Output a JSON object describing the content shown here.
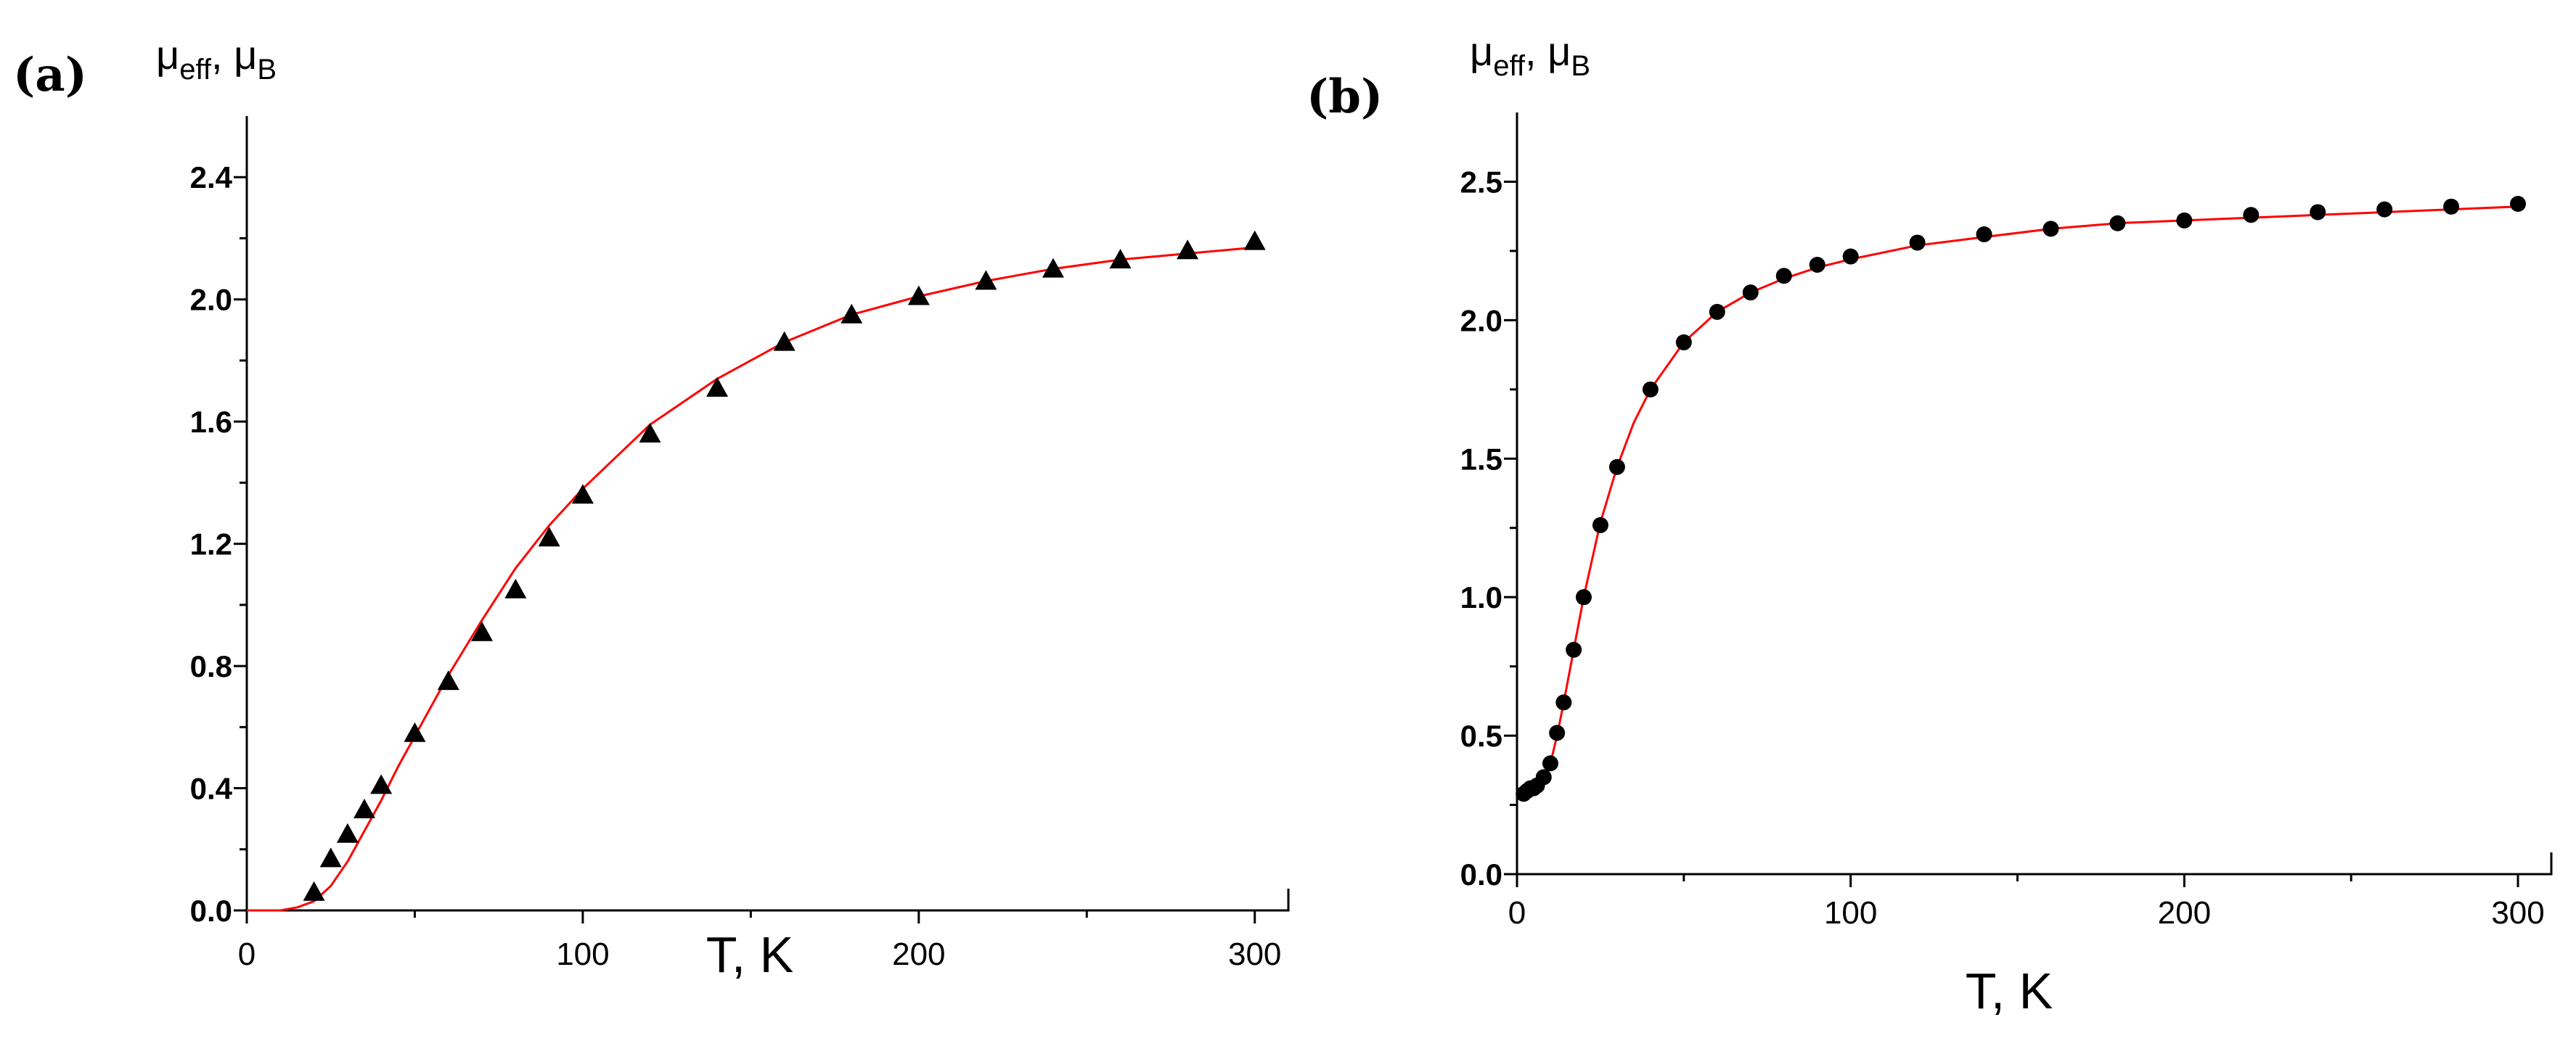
{
  "chart_data": [
    {
      "type": "scatter",
      "panel_label": "(a)",
      "ylabel": "μ",
      "ylabel_sub": "eff",
      "ylabel_sep": ", μ",
      "ylabel_sub2": "B",
      "xlabel": "T, K",
      "xlim": [
        0,
        310
      ],
      "ylim": [
        0,
        2.6
      ],
      "x_ticks": [
        0,
        100,
        200,
        300
      ],
      "x_minor_ticks": [
        50,
        150,
        250
      ],
      "y_ticks": [
        0.0,
        0.4,
        0.8,
        1.2,
        1.6,
        2.0,
        2.4
      ],
      "y_tick_labels": [
        "0.0",
        "0.4",
        "0.8",
        "1.2",
        "1.6",
        "2.0",
        "2.4"
      ],
      "y_minor_ticks": [
        0.2,
        0.6,
        1.0,
        1.4,
        1.8,
        2.2
      ],
      "marker": "triangle",
      "marker_color": "#000000",
      "points": {
        "x": [
          20,
          25,
          30,
          35,
          40,
          50,
          60,
          70,
          80,
          90,
          100,
          120,
          140,
          160,
          180,
          200,
          220,
          240,
          260,
          280,
          300
        ],
        "y": [
          0.06,
          0.17,
          0.25,
          0.33,
          0.41,
          0.58,
          0.75,
          0.91,
          1.05,
          1.22,
          1.36,
          1.56,
          1.71,
          1.86,
          1.95,
          2.01,
          2.06,
          2.1,
          2.13,
          2.16,
          2.19
        ]
      },
      "fit": {
        "color": "#ff0000",
        "x": [
          0,
          10,
          15,
          20,
          25,
          30,
          35,
          40,
          45,
          50,
          60,
          70,
          80,
          90,
          100,
          120,
          140,
          160,
          180,
          200,
          220,
          240,
          260,
          280,
          300
        ],
        "y": [
          0.0,
          0.0,
          0.01,
          0.03,
          0.08,
          0.16,
          0.26,
          0.36,
          0.47,
          0.57,
          0.77,
          0.95,
          1.12,
          1.26,
          1.38,
          1.59,
          1.74,
          1.86,
          1.95,
          2.01,
          2.06,
          2.1,
          2.13,
          2.15,
          2.17
        ]
      }
    },
    {
      "type": "scatter",
      "panel_label": "(b)",
      "ylabel": "μ",
      "ylabel_sub": "eff",
      "ylabel_sep": ", μ",
      "ylabel_sub2": "B",
      "xlabel": "T, K",
      "xlim": [
        0,
        310
      ],
      "ylim": [
        0,
        2.75
      ],
      "x_ticks": [
        0,
        100,
        200,
        300
      ],
      "x_minor_ticks": [
        50,
        150,
        250
      ],
      "y_ticks": [
        0.0,
        0.5,
        1.0,
        1.5,
        2.0,
        2.5
      ],
      "y_tick_labels": [
        "0.0",
        "0.5",
        "1.0",
        "1.5",
        "2.0",
        "2.5"
      ],
      "y_minor_ticks": [
        0.25,
        0.75,
        1.25,
        1.75,
        2.25
      ],
      "marker": "circle",
      "marker_color": "#000000",
      "points": {
        "x": [
          2,
          3,
          4,
          5,
          6,
          8,
          10,
          12,
          14,
          17,
          20,
          25,
          30,
          40,
          50,
          60,
          70,
          80,
          90,
          100,
          120,
          140,
          160,
          180,
          200,
          220,
          240,
          260,
          280,
          300
        ],
        "y": [
          0.29,
          0.3,
          0.31,
          0.31,
          0.32,
          0.35,
          0.4,
          0.51,
          0.62,
          0.81,
          1.0,
          1.26,
          1.47,
          1.75,
          1.92,
          2.03,
          2.1,
          2.16,
          2.2,
          2.23,
          2.28,
          2.31,
          2.33,
          2.35,
          2.36,
          2.38,
          2.39,
          2.4,
          2.41,
          2.42
        ]
      },
      "fit": {
        "color": "#ff0000",
        "x": [
          2,
          4,
          6,
          8,
          10,
          12,
          14,
          17,
          20,
          25,
          30,
          35,
          40,
          50,
          60,
          70,
          80,
          90,
          100,
          120,
          140,
          160,
          180,
          200,
          220,
          240,
          260,
          280,
          300
        ],
        "y": [
          0.29,
          0.3,
          0.32,
          0.35,
          0.4,
          0.5,
          0.62,
          0.81,
          1.0,
          1.27,
          1.47,
          1.63,
          1.75,
          1.92,
          2.03,
          2.1,
          2.15,
          2.19,
          2.22,
          2.27,
          2.3,
          2.33,
          2.35,
          2.36,
          2.37,
          2.38,
          2.39,
          2.4,
          2.41
        ]
      }
    }
  ]
}
